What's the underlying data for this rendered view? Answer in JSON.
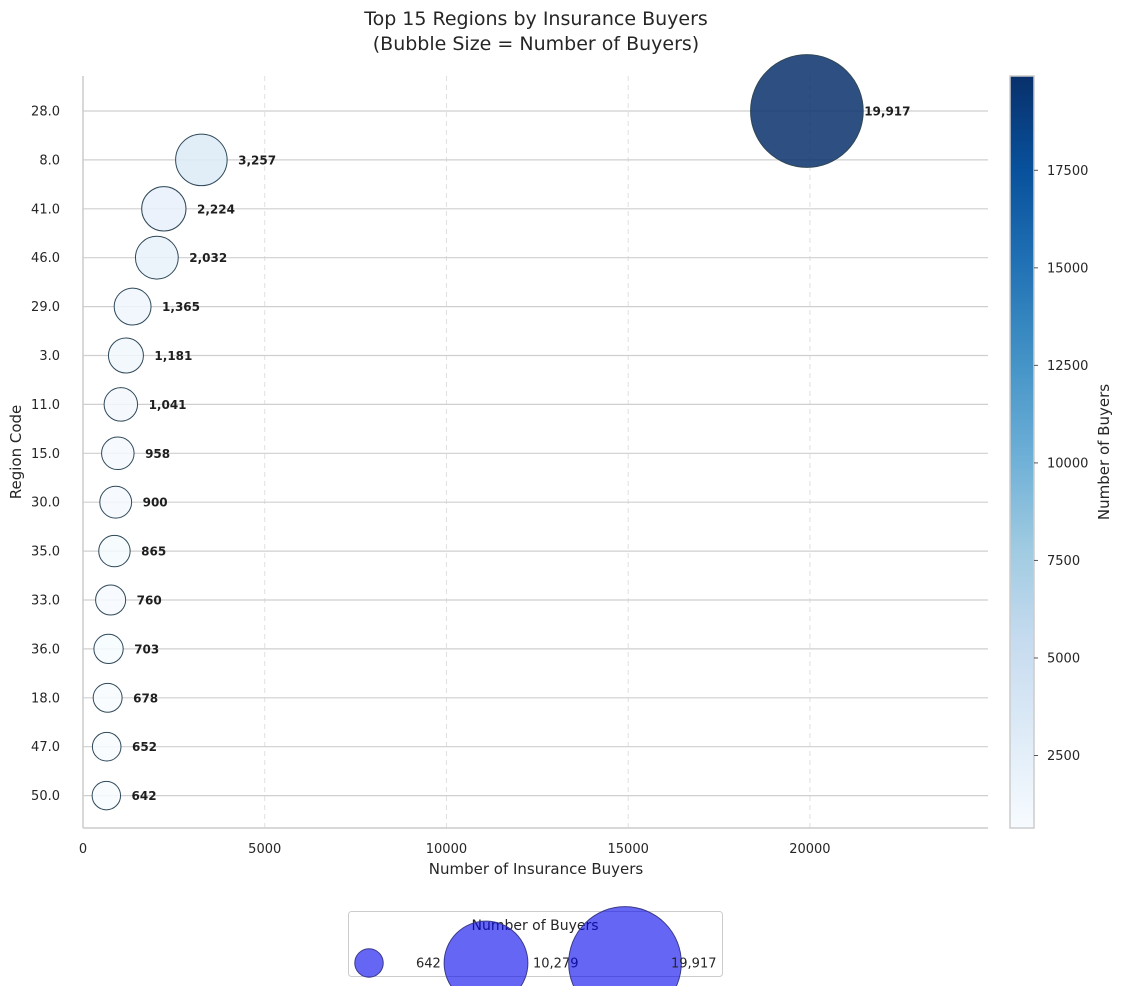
{
  "chart_data": {
    "type": "scatter",
    "title_line1": "Top 15 Regions by Insurance Buyers",
    "title_line2": "(Bubble Size = Number of Buyers)",
    "xlabel": "Number of Insurance Buyers",
    "ylabel": "Region Code",
    "xlim": [
      0,
      24900
    ],
    "x_ticks": [
      0,
      5000,
      10000,
      15000,
      20000
    ],
    "x_tick_labels": [
      "0",
      "5000",
      "10000",
      "15000",
      "20000"
    ],
    "grid": "x dashed, y solid",
    "points": [
      {
        "region": "28.0",
        "buyers": 19917,
        "label": "19,917"
      },
      {
        "region": "8.0",
        "buyers": 3257,
        "label": "3,257"
      },
      {
        "region": "41.0",
        "buyers": 2224,
        "label": "2,224"
      },
      {
        "region": "46.0",
        "buyers": 2032,
        "label": "2,032"
      },
      {
        "region": "29.0",
        "buyers": 1365,
        "label": "1,365"
      },
      {
        "region": "3.0",
        "buyers": 1181,
        "label": "1,181"
      },
      {
        "region": "11.0",
        "buyers": 1041,
        "label": "1,041"
      },
      {
        "region": "15.0",
        "buyers": 958,
        "label": "958"
      },
      {
        "region": "30.0",
        "buyers": 900,
        "label": "900"
      },
      {
        "region": "35.0",
        "buyers": 865,
        "label": "865"
      },
      {
        "region": "33.0",
        "buyers": 760,
        "label": "760"
      },
      {
        "region": "36.0",
        "buyers": 703,
        "label": "703"
      },
      {
        "region": "18.0",
        "buyers": 678,
        "label": "678"
      },
      {
        "region": "47.0",
        "buyers": 652,
        "label": "652"
      },
      {
        "region": "50.0",
        "buyers": 642,
        "label": "642"
      }
    ],
    "colorbar": {
      "label": "Number of Buyers",
      "range": [
        642,
        19917
      ],
      "ticks": [
        2500,
        5000,
        7500,
        10000,
        12500,
        15000,
        17500
      ],
      "tick_labels": [
        "2500",
        "5000",
        "7500",
        "10000",
        "12500",
        "15000",
        "17500"
      ],
      "colormap": "Blues"
    },
    "size_legend": {
      "title": "Number of Buyers",
      "placement": "bottom-center",
      "color": "#0000ee",
      "entries": [
        {
          "value": 642,
          "label": "642"
        },
        {
          "value": 10279,
          "label": "10,279"
        },
        {
          "value": 19917,
          "label": "19,917"
        }
      ]
    }
  }
}
